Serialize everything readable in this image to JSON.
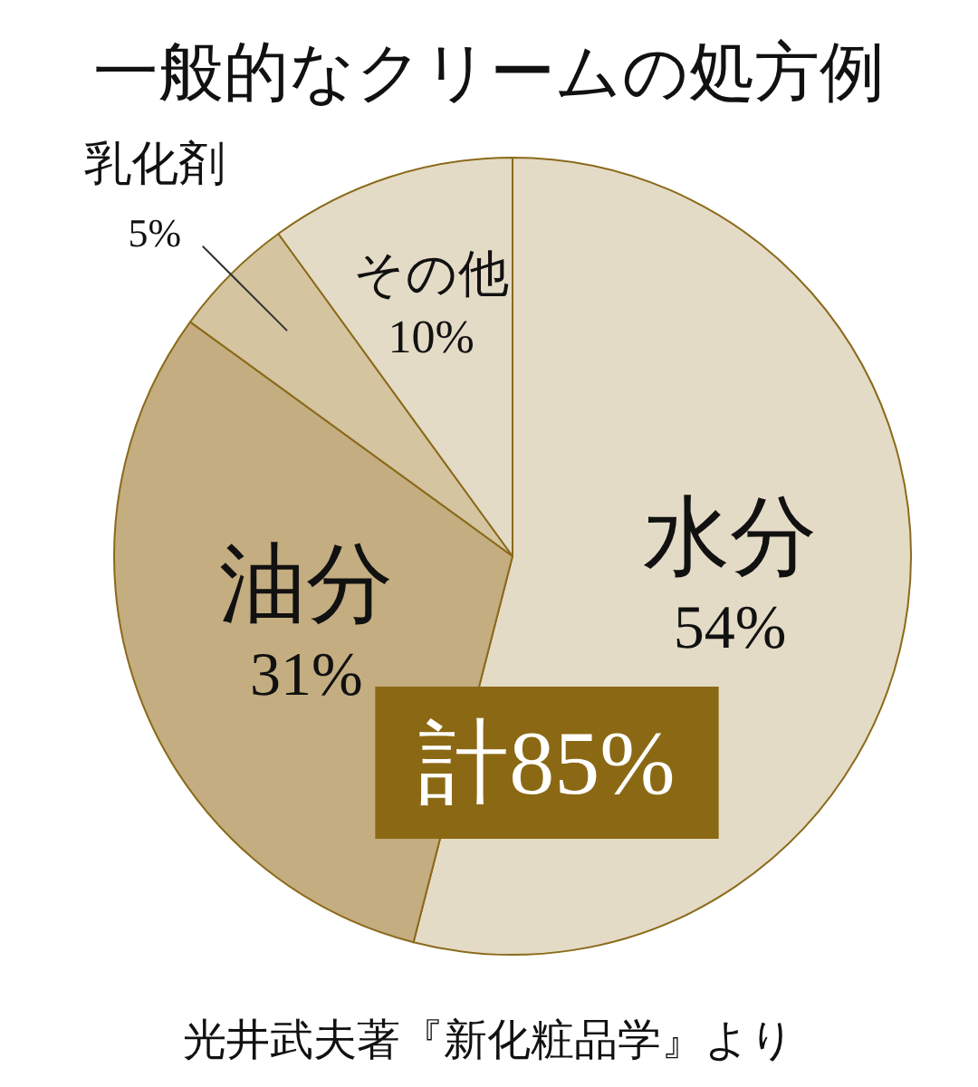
{
  "chart_data": {
    "type": "pie",
    "title": "一般的なクリームの処方例",
    "categories": [
      "水分",
      "油分",
      "乳化剤",
      "その他"
    ],
    "values": [
      54,
      31,
      5,
      10
    ],
    "value_labels": [
      "54%",
      "31%",
      "5%",
      "10%"
    ],
    "colors": [
      "#e4dbc6",
      "#c4ad80",
      "#d4c4a0",
      "#e4dbc6"
    ],
    "annotations": [
      "計85%",
      "光井武夫著『新化粧品学』より"
    ]
  }
}
